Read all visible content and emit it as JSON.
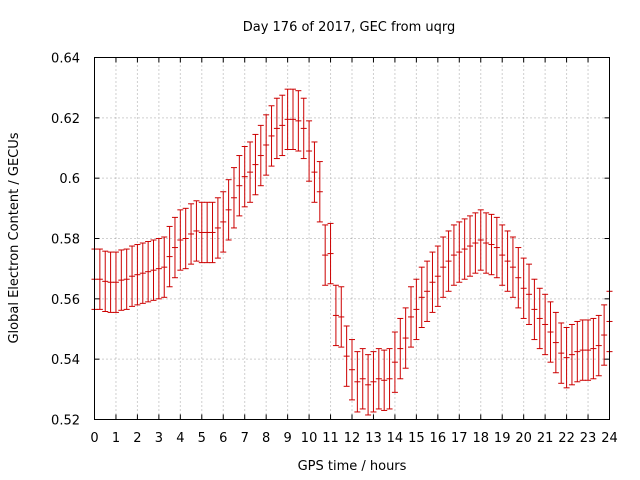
{
  "chart_data": {
    "type": "scatter",
    "title": "Day 176 of 2017, GEC from uqrg",
    "xlabel": "GPS time / hours",
    "ylabel": "Global Electron Content / GECUs",
    "xlim": [
      0,
      24
    ],
    "ylim": [
      0.52,
      0.64
    ],
    "xticks": [
      0,
      1,
      2,
      3,
      4,
      5,
      6,
      7,
      8,
      9,
      10,
      11,
      12,
      13,
      14,
      15,
      16,
      17,
      18,
      19,
      20,
      21,
      22,
      23,
      24
    ],
    "yticks": [
      0.52,
      0.54,
      0.56,
      0.58,
      0.6,
      0.62,
      0.64
    ],
    "ytick_labels": [
      "0.52",
      "0.54",
      "0.56",
      "0.58",
      "0.6",
      "0.62",
      "0.64"
    ],
    "grid": true,
    "series_color": "#cc0000",
    "error": 0.01,
    "series": [
      {
        "x": [
          0,
          0.25,
          0.5,
          0.75,
          1,
          1.25,
          1.5,
          1.75,
          2,
          2.25,
          2.5,
          2.75,
          3,
          3.25,
          3.5,
          3.75,
          4,
          4.25,
          4.5,
          4.75,
          5,
          5.25,
          5.5,
          5.75,
          6,
          6.25,
          6.5,
          6.75,
          7,
          7.25,
          7.5,
          7.75,
          8,
          8.25,
          8.5,
          8.75,
          9,
          9.25,
          9.5,
          9.75,
          10,
          10.25,
          10.5,
          10.75,
          11,
          11.25,
          11.5,
          11.75,
          12,
          12.25,
          12.5,
          12.75,
          13,
          13.25,
          13.5,
          13.75,
          14,
          14.25,
          14.5,
          14.75,
          15,
          15.25,
          15.5,
          15.75,
          16,
          16.25,
          16.5,
          16.75,
          17,
          17.25,
          17.5,
          17.75,
          18,
          18.25,
          18.5,
          18.75,
          19,
          19.25,
          19.5,
          19.75,
          20,
          20.25,
          20.5,
          20.75,
          21,
          21.25,
          21.5,
          21.75,
          22,
          22.25,
          22.5,
          22.75,
          23,
          23.25,
          23.5,
          23.75,
          24
        ],
        "y": [
          0.5665,
          0.5665,
          0.5658,
          0.5655,
          0.5655,
          0.5662,
          0.5665,
          0.5675,
          0.568,
          0.5685,
          0.569,
          0.5695,
          0.57,
          0.5705,
          0.574,
          0.577,
          0.5795,
          0.58,
          0.5815,
          0.5825,
          0.582,
          0.582,
          0.582,
          0.5835,
          0.5855,
          0.5895,
          0.5935,
          0.5975,
          0.6005,
          0.602,
          0.6045,
          0.6075,
          0.611,
          0.614,
          0.6165,
          0.6175,
          0.6195,
          0.6195,
          0.619,
          0.6165,
          0.609,
          0.602,
          0.5955,
          0.5745,
          0.575,
          0.5545,
          0.554,
          0.541,
          0.5365,
          0.5325,
          0.5335,
          0.5315,
          0.5325,
          0.5335,
          0.533,
          0.5335,
          0.539,
          0.5435,
          0.547,
          0.554,
          0.5565,
          0.5605,
          0.5625,
          0.5655,
          0.5675,
          0.5705,
          0.5725,
          0.5745,
          0.5755,
          0.5765,
          0.5775,
          0.5785,
          0.5795,
          0.5785,
          0.578,
          0.577,
          0.5745,
          0.5725,
          0.5705,
          0.567,
          0.5635,
          0.5615,
          0.5565,
          0.5535,
          0.5515,
          0.549,
          0.5455,
          0.542,
          0.5405,
          0.5415,
          0.5425,
          0.543,
          0.543,
          0.5435,
          0.5445,
          0.548,
          0.5525
        ]
      }
    ]
  }
}
